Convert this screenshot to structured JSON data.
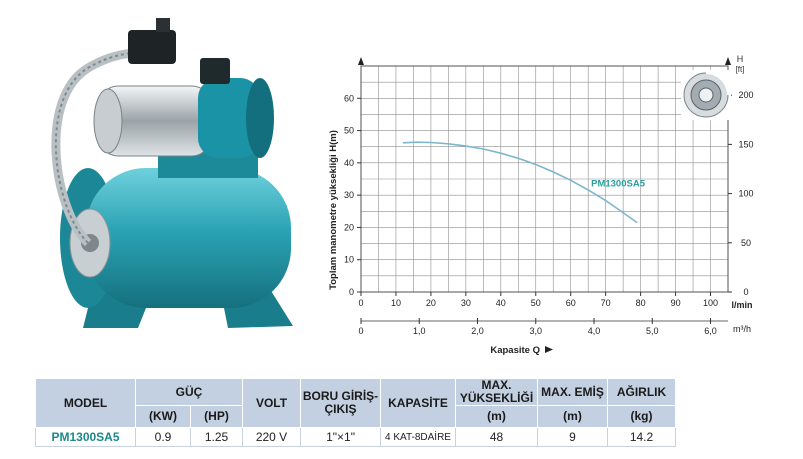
{
  "colors": {
    "curve": "#7cb6cf",
    "curve_label": "#2a9d9d",
    "grid": "#8f8f8f",
    "table_header": "#c3d0e2",
    "pump_body": "#2a9fb0",
    "pump_dark": "#1b7f8e"
  },
  "pump_image": {
    "icon": "water-pump-with-pressure-tank"
  },
  "impeller_image": {
    "icon": "impeller-icon"
  },
  "chart_data": {
    "type": "line",
    "ylabel": "Toplam manometre yüksekliği  H(m)",
    "ylim": [
      0,
      70
    ],
    "yticks": [
      "0",
      "10",
      "20",
      "30",
      "40",
      "50",
      "60"
    ],
    "xlim": [
      0,
      105
    ],
    "xticks_lmin": [
      "0",
      "10",
      "20",
      "30",
      "40",
      "50",
      "60",
      "70",
      "80",
      "90",
      "100"
    ],
    "x_unit_lmin": "l/min",
    "xticks_m3h": [
      "0",
      "1,0",
      "2,0",
      "3,0",
      "4,0",
      "5,0",
      "6,0"
    ],
    "x_unit_m3h": "m³/h",
    "xlabel": "Kapasite Q",
    "right_axis_title": "H",
    "right_axis_unit": "[ft]",
    "right_ticks": [
      "0",
      "50",
      "100",
      "150",
      "200"
    ],
    "grid": true,
    "series": [
      {
        "name": "PM1300SA5",
        "x": [
          12,
          16,
          20,
          25,
          30,
          35,
          40,
          45,
          50,
          55,
          60,
          65,
          70,
          75,
          79
        ],
        "y": [
          46.2,
          46.4,
          46.3,
          45.9,
          45.2,
          44.3,
          43.0,
          41.4,
          39.5,
          37.2,
          34.6,
          31.6,
          28.3,
          24.6,
          21.5
        ]
      }
    ]
  },
  "table": {
    "headers": {
      "model": "MODEL",
      "power": "GÜÇ",
      "power_kw": "(KW)",
      "power_hp": "(HP)",
      "volt": "VOLT",
      "pipe": "BORU GİRİŞ-ÇIKIŞ",
      "capacity": "KAPASİTE",
      "max_head": "MAX. YÜKSEKLİĞİ",
      "max_head_unit": "(m)",
      "max_suction": "MAX. EMİŞ",
      "max_suction_unit": "(m)",
      "weight": "AĞIRLIK",
      "weight_unit": "(kg)"
    },
    "row": {
      "model": "PM1300SA5",
      "kw": "0.9",
      "hp": "1.25",
      "volt": "220 V",
      "pipe": "1\"×1\"",
      "capacity": "4 KAT-8DAİRE",
      "max_head": "48",
      "max_suction": "9",
      "weight": "14.2"
    }
  }
}
